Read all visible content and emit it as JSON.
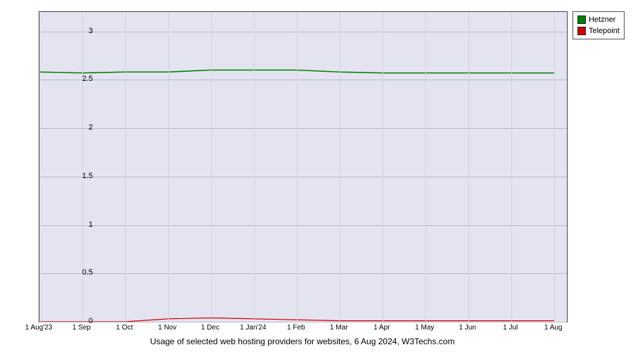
{
  "chart": {
    "type": "line",
    "caption": "Usage of selected web hosting providers for websites, 6 Aug 2024, W3Techs.com",
    "background_color": "#e4e4f0",
    "grid_color_major": "#b8b8c8",
    "grid_color_minor": "#d0d0de",
    "border_color": "#444444",
    "ylim": [
      0,
      3.2
    ],
    "y_ticks": [
      0,
      0.5,
      1,
      1.5,
      2,
      2.5,
      3
    ],
    "y_tick_labels": [
      "0",
      "0.5",
      "1",
      "1.5",
      "2",
      "2.5",
      "3"
    ],
    "x_labels": [
      "1 Aug'23",
      "1 Sep",
      "1 Oct",
      "1 Nov",
      "1 Dec",
      "1 Jan'24",
      "1 Feb",
      "1 Mar",
      "1 Apr",
      "1 May",
      "1 Jun",
      "1 Jul",
      "1 Aug"
    ],
    "x_positions": [
      0,
      1,
      2,
      3,
      4,
      5,
      6,
      7,
      8,
      9,
      10,
      11,
      12
    ],
    "x_range": [
      0,
      12.3
    ],
    "series": [
      {
        "name": "Hetzner",
        "color": "#008000",
        "line_width": 1.6,
        "x": [
          0,
          1,
          2,
          3,
          4,
          5,
          6,
          7,
          8,
          9,
          10,
          11,
          12
        ],
        "y": [
          2.58,
          2.57,
          2.58,
          2.58,
          2.6,
          2.6,
          2.6,
          2.58,
          2.57,
          2.57,
          2.57,
          2.57,
          2.57
        ]
      },
      {
        "name": "Telepoint",
        "color": "#d00000",
        "line_width": 1.2,
        "x": [
          0,
          1,
          2,
          3,
          4,
          5,
          6,
          7,
          8,
          9,
          10,
          11,
          12
        ],
        "y": [
          0.0,
          0.0,
          0.0,
          0.03,
          0.04,
          0.03,
          0.02,
          0.01,
          0.01,
          0.01,
          0.01,
          0.01,
          0.01
        ]
      }
    ],
    "legend": {
      "items": [
        {
          "label": "Hetzner",
          "color": "#008000"
        },
        {
          "label": "Telepoint",
          "color": "#d00000"
        }
      ]
    },
    "label_fontsize": 11,
    "caption_fontsize": 12
  }
}
